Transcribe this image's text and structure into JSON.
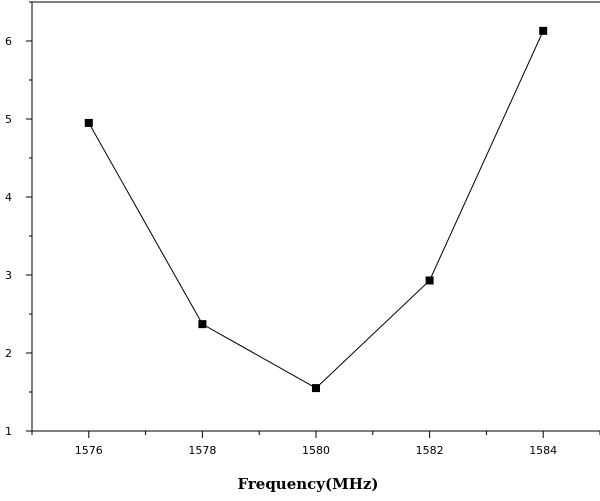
{
  "chart_data": {
    "type": "line",
    "title": "",
    "xlabel": "Frequency(MHz)",
    "ylabel": "",
    "xlim": [
      1575,
      1585
    ],
    "ylim": [
      1,
      6.5
    ],
    "x_ticks": [
      1576,
      1578,
      1580,
      1582,
      1584
    ],
    "x_minor_ticks": [
      1575,
      1577,
      1579,
      1581,
      1583,
      1585
    ],
    "y_ticks": [
      1,
      2,
      3,
      4,
      5,
      6
    ],
    "y_minor_ticks": [
      1.5,
      2.5,
      3.5,
      4.5,
      5.5,
      6.5
    ],
    "grid": false,
    "legend": "none",
    "marker": "square",
    "line_color": "#000000",
    "series": [
      {
        "x": [
          1576,
          1578,
          1580,
          1582,
          1584
        ],
        "values": [
          4.95,
          2.37,
          1.55,
          2.93,
          6.13
        ]
      }
    ]
  }
}
